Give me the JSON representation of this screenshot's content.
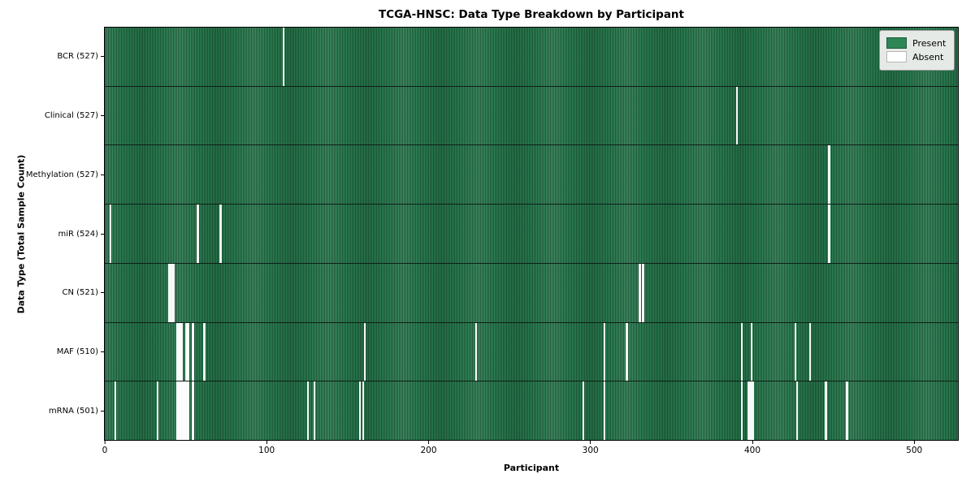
{
  "title": "TCGA-HNSC: Data Type Breakdown by Participant",
  "xlabel": "Participant",
  "ylabel": "Data Type (Total Sample Count)",
  "legend": {
    "present_label": "Present",
    "absent_label": "Absent"
  },
  "colors": {
    "present": "#2e8657",
    "absent": "#ffffff",
    "stripe_edge": "#0a2817",
    "legend_bg": "#e6eae6",
    "axis": "#000000"
  },
  "chart_data": {
    "type": "heatmap",
    "title": "TCGA-HNSC: Data Type Breakdown by Participant",
    "xlabel": "Participant",
    "ylabel": "Data Type (Total Sample Count)",
    "legend_entries": [
      "Present",
      "Absent"
    ],
    "legend_position": "upper right",
    "x_range": [
      0,
      527
    ],
    "x_ticks": [
      0,
      100,
      200,
      300,
      400,
      500
    ],
    "n_participants": 527,
    "rows": [
      {
        "label": "BCR (527)",
        "data_type": "BCR",
        "total_samples": 527,
        "absent_participants": [
          110
        ]
      },
      {
        "label": "Clinical (527)",
        "data_type": "Clinical",
        "total_samples": 527,
        "absent_participants": [
          390
        ]
      },
      {
        "label": "Methylation (527)",
        "data_type": "Methylation",
        "total_samples": 527,
        "absent_participants": [
          447
        ]
      },
      {
        "label": "miR (524)",
        "data_type": "miR",
        "total_samples": 524,
        "absent_participants": [
          3,
          57,
          71,
          447
        ]
      },
      {
        "label": "CN (521)",
        "data_type": "CN",
        "total_samples": 521,
        "absent_participants": [
          39,
          40,
          41,
          42,
          330,
          332
        ]
      },
      {
        "label": "MAF (510)",
        "data_type": "MAF",
        "total_samples": 510,
        "absent_participants": [
          44,
          45,
          46,
          47,
          50,
          51,
          54,
          61,
          160,
          229,
          308,
          322,
          393,
          399,
          426,
          435
        ]
      },
      {
        "label": "mRNA (501)",
        "data_type": "mRNA",
        "total_samples": 501,
        "absent_participants": [
          6,
          32,
          44,
          45,
          46,
          47,
          48,
          49,
          50,
          51,
          54,
          125,
          129,
          157,
          159,
          295,
          308,
          393,
          397,
          398,
          399,
          400,
          427,
          445,
          458
        ]
      }
    ]
  }
}
